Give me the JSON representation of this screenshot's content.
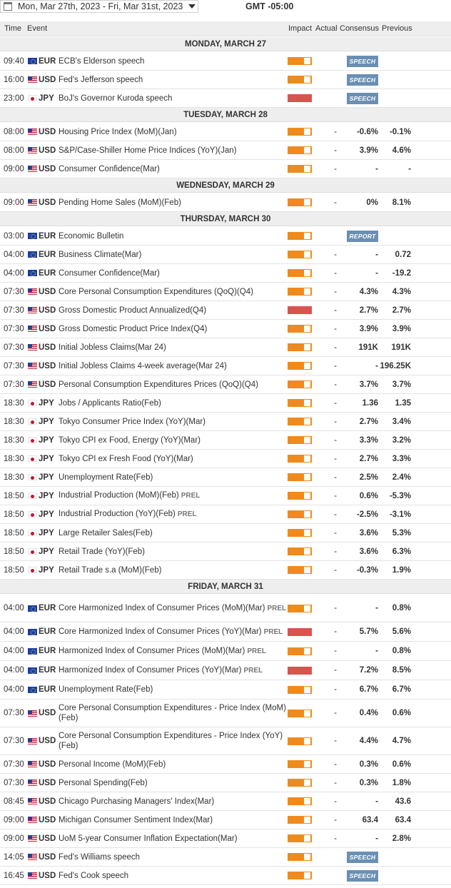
{
  "toolbar": {
    "date_range": "Mon, Mar 27th, 2023  -  Fri, Mar 31st, 2023",
    "timezone": "GMT -05:00"
  },
  "columns": {
    "time": "Time",
    "event": "Event",
    "impact": "Impact",
    "actual": "Actual",
    "consensus": "Consensus",
    "previous": "Previous"
  },
  "colors": {
    "medium_impact": "#ef8a1c",
    "high_impact": "#d9534f",
    "tag": "#6b8fb3",
    "day_header_bg": "#eeeeee"
  },
  "days": [
    {
      "label": "MONDAY, MARCH 27",
      "events": [
        {
          "time": "09:40",
          "cur": "EUR",
          "event": "ECB's Elderson speech",
          "prel": "",
          "impact": "medium",
          "actual": "",
          "consensus": "",
          "previous": "",
          "tag": "SPEECH"
        },
        {
          "time": "16:00",
          "cur": "USD",
          "event": "Fed's Jefferson speech",
          "prel": "",
          "impact": "medium",
          "actual": "",
          "consensus": "",
          "previous": "",
          "tag": "SPEECH"
        },
        {
          "time": "23:00",
          "cur": "JPY",
          "event": "BoJ's Governor Kuroda speech",
          "prel": "",
          "impact": "high",
          "actual": "",
          "consensus": "",
          "previous": "",
          "tag": "SPEECH"
        }
      ]
    },
    {
      "label": "TUESDAY, MARCH 28",
      "events": [
        {
          "time": "08:00",
          "cur": "USD",
          "event": "Housing Price Index (MoM)(Jan)",
          "prel": "",
          "impact": "medium",
          "actual": "-",
          "consensus": "-0.6%",
          "previous": "-0.1%",
          "tag": ""
        },
        {
          "time": "08:00",
          "cur": "USD",
          "event": "S&P/Case-Shiller Home Price Indices (YoY)(Jan)",
          "prel": "",
          "impact": "medium",
          "actual": "-",
          "consensus": "3.9%",
          "previous": "4.6%",
          "tag": ""
        },
        {
          "time": "09:00",
          "cur": "USD",
          "event": "Consumer Confidence(Mar)",
          "prel": "",
          "impact": "medium",
          "actual": "-",
          "consensus": "-",
          "previous": "-",
          "tag": ""
        }
      ]
    },
    {
      "label": "WEDNESDAY, MARCH 29",
      "events": [
        {
          "time": "09:00",
          "cur": "USD",
          "event": "Pending Home Sales (MoM)(Feb)",
          "prel": "",
          "impact": "medium",
          "actual": "-",
          "consensus": "0%",
          "previous": "8.1%",
          "tag": ""
        }
      ]
    },
    {
      "label": "THURSDAY, MARCH 30",
      "events": [
        {
          "time": "03:00",
          "cur": "EUR",
          "event": "Economic Bulletin",
          "prel": "",
          "impact": "medium",
          "actual": "",
          "consensus": "",
          "previous": "",
          "tag": "REPORT"
        },
        {
          "time": "04:00",
          "cur": "EUR",
          "event": "Business Climate(Mar)",
          "prel": "",
          "impact": "medium",
          "actual": "-",
          "consensus": "-",
          "previous": "0.72",
          "tag": ""
        },
        {
          "time": "04:00",
          "cur": "EUR",
          "event": "Consumer Confidence(Mar)",
          "prel": "",
          "impact": "medium",
          "actual": "-",
          "consensus": "-",
          "previous": "-19.2",
          "tag": ""
        },
        {
          "time": "07:30",
          "cur": "USD",
          "event": "Core Personal Consumption Expenditures (QoQ)(Q4)",
          "prel": "",
          "impact": "medium",
          "actual": "-",
          "consensus": "4.3%",
          "previous": "4.3%",
          "tag": ""
        },
        {
          "time": "07:30",
          "cur": "USD",
          "event": "Gross Domestic Product Annualized(Q4)",
          "prel": "",
          "impact": "high",
          "actual": "-",
          "consensus": "2.7%",
          "previous": "2.7%",
          "tag": ""
        },
        {
          "time": "07:30",
          "cur": "USD",
          "event": "Gross Domestic Product Price Index(Q4)",
          "prel": "",
          "impact": "medium",
          "actual": "-",
          "consensus": "3.9%",
          "previous": "3.9%",
          "tag": ""
        },
        {
          "time": "07:30",
          "cur": "USD",
          "event": "Initial Jobless Claims(Mar 24)",
          "prel": "",
          "impact": "medium",
          "actual": "-",
          "consensus": "191K",
          "previous": "191K",
          "tag": ""
        },
        {
          "time": "07:30",
          "cur": "USD",
          "event": "Initial Jobless Claims 4-week average(Mar 24)",
          "prel": "",
          "impact": "medium",
          "actual": "-",
          "consensus": "-",
          "previous": "196.25K",
          "tag": ""
        },
        {
          "time": "07:30",
          "cur": "USD",
          "event": "Personal Consumption Expenditures Prices (QoQ)(Q4)",
          "prel": "",
          "impact": "medium",
          "actual": "-",
          "consensus": "3.7%",
          "previous": "3.7%",
          "tag": ""
        },
        {
          "time": "18:30",
          "cur": "JPY",
          "event": "Jobs / Applicants Ratio(Feb)",
          "prel": "",
          "impact": "medium",
          "actual": "-",
          "consensus": "1.36",
          "previous": "1.35",
          "tag": ""
        },
        {
          "time": "18:30",
          "cur": "JPY",
          "event": "Tokyo Consumer Price Index (YoY)(Mar)",
          "prel": "",
          "impact": "medium",
          "actual": "-",
          "consensus": "2.7%",
          "previous": "3.4%",
          "tag": ""
        },
        {
          "time": "18:30",
          "cur": "JPY",
          "event": "Tokyo CPI ex Food, Energy (YoY)(Mar)",
          "prel": "",
          "impact": "medium",
          "actual": "-",
          "consensus": "3.3%",
          "previous": "3.2%",
          "tag": ""
        },
        {
          "time": "18:30",
          "cur": "JPY",
          "event": "Tokyo CPI ex Fresh Food (YoY)(Mar)",
          "prel": "",
          "impact": "medium",
          "actual": "-",
          "consensus": "2.7%",
          "previous": "3.3%",
          "tag": ""
        },
        {
          "time": "18:30",
          "cur": "JPY",
          "event": "Unemployment Rate(Feb)",
          "prel": "",
          "impact": "medium",
          "actual": "-",
          "consensus": "2.5%",
          "previous": "2.4%",
          "tag": ""
        },
        {
          "time": "18:50",
          "cur": "JPY",
          "event": "Industrial Production (MoM)(Feb)",
          "prel": "PREL",
          "impact": "medium",
          "actual": "-",
          "consensus": "0.6%",
          "previous": "-5.3%",
          "tag": ""
        },
        {
          "time": "18:50",
          "cur": "JPY",
          "event": "Industrial Production (YoY)(Feb)",
          "prel": "PREL",
          "impact": "medium",
          "actual": "-",
          "consensus": "-2.5%",
          "previous": "-3.1%",
          "tag": ""
        },
        {
          "time": "18:50",
          "cur": "JPY",
          "event": "Large Retailer Sales(Feb)",
          "prel": "",
          "impact": "medium",
          "actual": "-",
          "consensus": "3.6%",
          "previous": "5.3%",
          "tag": ""
        },
        {
          "time": "18:50",
          "cur": "JPY",
          "event": "Retail Trade (YoY)(Feb)",
          "prel": "",
          "impact": "medium",
          "actual": "-",
          "consensus": "3.6%",
          "previous": "6.3%",
          "tag": ""
        },
        {
          "time": "18:50",
          "cur": "JPY",
          "event": "Retail Trade s.a (MoM)(Feb)",
          "prel": "",
          "impact": "medium",
          "actual": "-",
          "consensus": "-0.3%",
          "previous": "1.9%",
          "tag": ""
        }
      ]
    },
    {
      "label": "FRIDAY, MARCH 31",
      "events": [
        {
          "time": "04:00",
          "cur": "EUR",
          "event": "Core Harmonized Index of Consumer Prices (MoM)(Mar)",
          "prel": "PREL",
          "impact": "medium",
          "actual": "-",
          "consensus": "-",
          "previous": "0.8%",
          "tag": ""
        },
        {
          "time": "04:00",
          "cur": "EUR",
          "event": "Core Harmonized Index of Consumer Prices (YoY)(Mar)",
          "prel": "PREL",
          "impact": "high",
          "actual": "-",
          "consensus": "5.7%",
          "previous": "5.6%",
          "tag": ""
        },
        {
          "time": "04:00",
          "cur": "EUR",
          "event": "Harmonized Index of Consumer Prices (MoM)(Mar)",
          "prel": "PREL",
          "impact": "medium",
          "actual": "-",
          "consensus": "-",
          "previous": "0.8%",
          "tag": ""
        },
        {
          "time": "04:00",
          "cur": "EUR",
          "event": "Harmonized Index of Consumer Prices (YoY)(Mar)",
          "prel": "PREL",
          "impact": "high",
          "actual": "-",
          "consensus": "7.2%",
          "previous": "8.5%",
          "tag": ""
        },
        {
          "time": "04:00",
          "cur": "EUR",
          "event": "Unemployment Rate(Feb)",
          "prel": "",
          "impact": "medium",
          "actual": "-",
          "consensus": "6.7%",
          "previous": "6.7%",
          "tag": ""
        },
        {
          "time": "07:30",
          "cur": "USD",
          "event": "Core Personal Consumption Expenditures - Price Index (MoM)(Feb)",
          "prel": "",
          "impact": "medium",
          "actual": "-",
          "consensus": "0.4%",
          "previous": "0.6%",
          "tag": ""
        },
        {
          "time": "07:30",
          "cur": "USD",
          "event": "Core Personal Consumption Expenditures - Price Index (YoY)(Feb)",
          "prel": "",
          "impact": "medium",
          "actual": "-",
          "consensus": "4.4%",
          "previous": "4.7%",
          "tag": ""
        },
        {
          "time": "07:30",
          "cur": "USD",
          "event": "Personal Income (MoM)(Feb)",
          "prel": "",
          "impact": "medium",
          "actual": "-",
          "consensus": "0.3%",
          "previous": "0.6%",
          "tag": ""
        },
        {
          "time": "07:30",
          "cur": "USD",
          "event": "Personal Spending(Feb)",
          "prel": "",
          "impact": "medium",
          "actual": "-",
          "consensus": "0.3%",
          "previous": "1.8%",
          "tag": ""
        },
        {
          "time": "08:45",
          "cur": "USD",
          "event": "Chicago Purchasing Managers' Index(Mar)",
          "prel": "",
          "impact": "medium",
          "actual": "-",
          "consensus": "-",
          "previous": "43.6",
          "tag": ""
        },
        {
          "time": "09:00",
          "cur": "USD",
          "event": "Michigan Consumer Sentiment Index(Mar)",
          "prel": "",
          "impact": "medium",
          "actual": "-",
          "consensus": "63.4",
          "previous": "63.4",
          "tag": ""
        },
        {
          "time": "09:00",
          "cur": "USD",
          "event": "UoM 5-year Consumer Inflation Expectation(Mar)",
          "prel": "",
          "impact": "medium",
          "actual": "-",
          "consensus": "-",
          "previous": "2.8%",
          "tag": ""
        },
        {
          "time": "14:05",
          "cur": "USD",
          "event": "Fed's Williams speech",
          "prel": "",
          "impact": "medium",
          "actual": "",
          "consensus": "",
          "previous": "",
          "tag": "SPEECH"
        },
        {
          "time": "16:45",
          "cur": "USD",
          "event": "Fed's Cook speech",
          "prel": "",
          "impact": "medium",
          "actual": "",
          "consensus": "",
          "previous": "",
          "tag": "SPEECH"
        }
      ]
    }
  ]
}
